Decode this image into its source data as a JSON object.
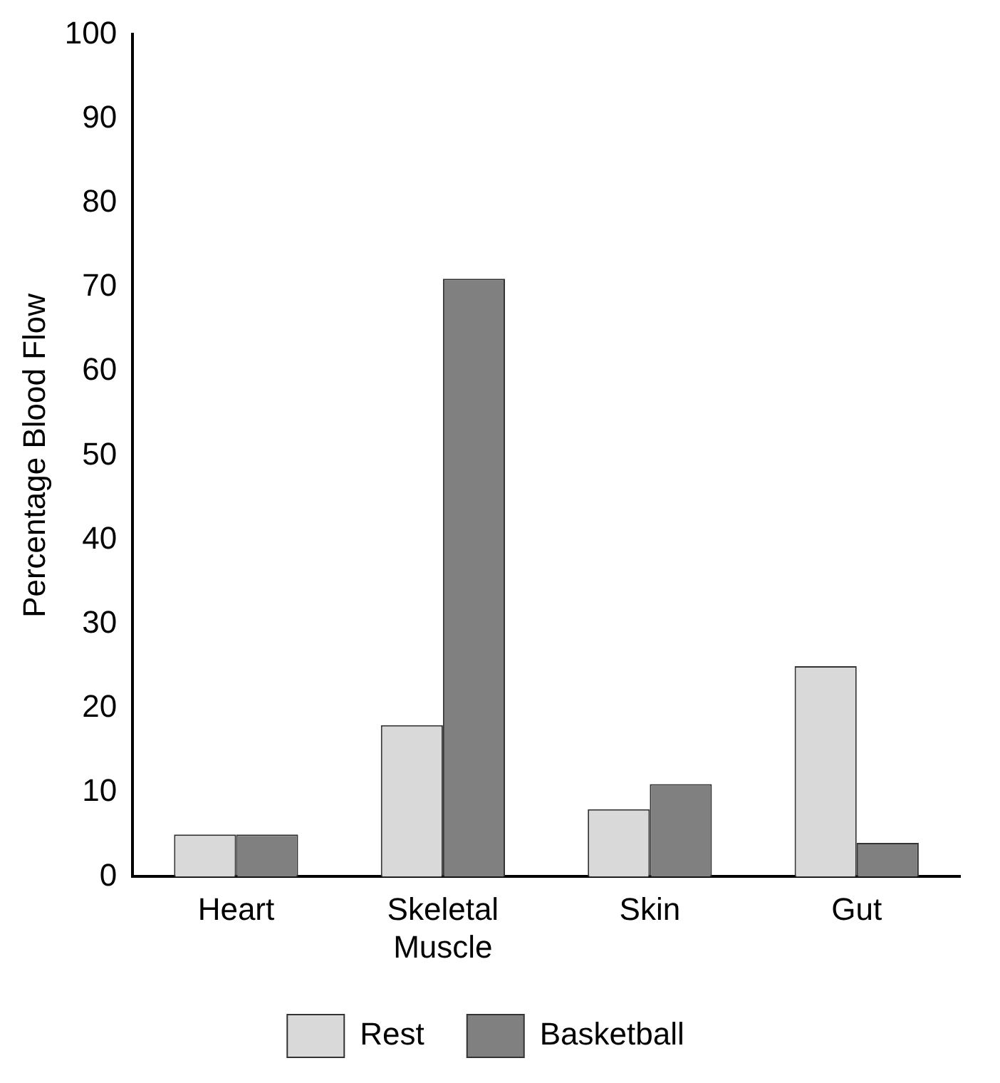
{
  "chart_data": {
    "type": "bar",
    "ylabel": "Percentage Blood Flow",
    "categories": [
      "Heart",
      "Skeletal\nMuscle",
      "Skin",
      "Gut"
    ],
    "series": [
      {
        "name": "Rest",
        "color": "#d9d9d9",
        "values": [
          5,
          18,
          8,
          25
        ]
      },
      {
        "name": "Basketball",
        "color": "#808080",
        "values": [
          5,
          71,
          11,
          4
        ]
      }
    ],
    "ylim": [
      0,
      100
    ],
    "yticks": [
      0,
      10,
      20,
      30,
      40,
      50,
      60,
      70,
      80,
      90,
      100
    ],
    "grid": false,
    "legend": "bottom"
  }
}
